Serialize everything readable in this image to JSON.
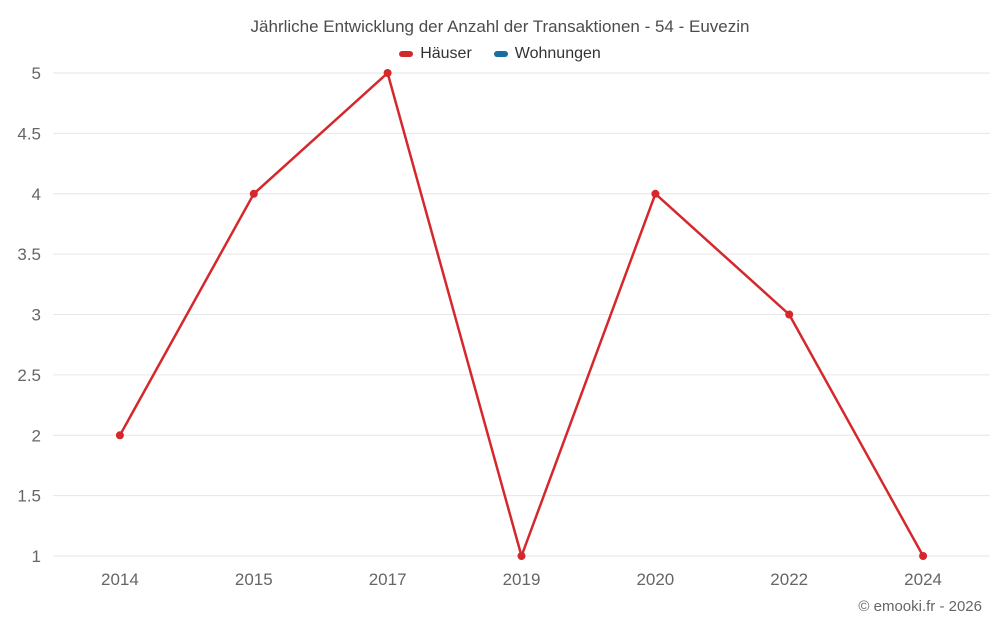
{
  "chart_data": {
    "type": "line",
    "title": "Jährliche Entwicklung der Anzahl der Transaktionen - 54 - Euvezin",
    "categories": [
      "2014",
      "2015",
      "2017",
      "2019",
      "2020",
      "2022",
      "2024"
    ],
    "series": [
      {
        "name": "Häuser",
        "color": "#d5282d",
        "values": [
          2,
          4,
          5,
          1,
          4,
          3,
          1
        ]
      },
      {
        "name": "Wohnungen",
        "color": "#1a6da1",
        "values": []
      }
    ],
    "xlabel": "",
    "ylabel": "",
    "ylim": [
      1,
      5
    ],
    "ytick_step": 0.5,
    "grid": true,
    "grid_color": "#e6e6e6",
    "axis_label_color": "#666666",
    "legend_position": "top",
    "credit": "© emooki.fr - 2026"
  }
}
